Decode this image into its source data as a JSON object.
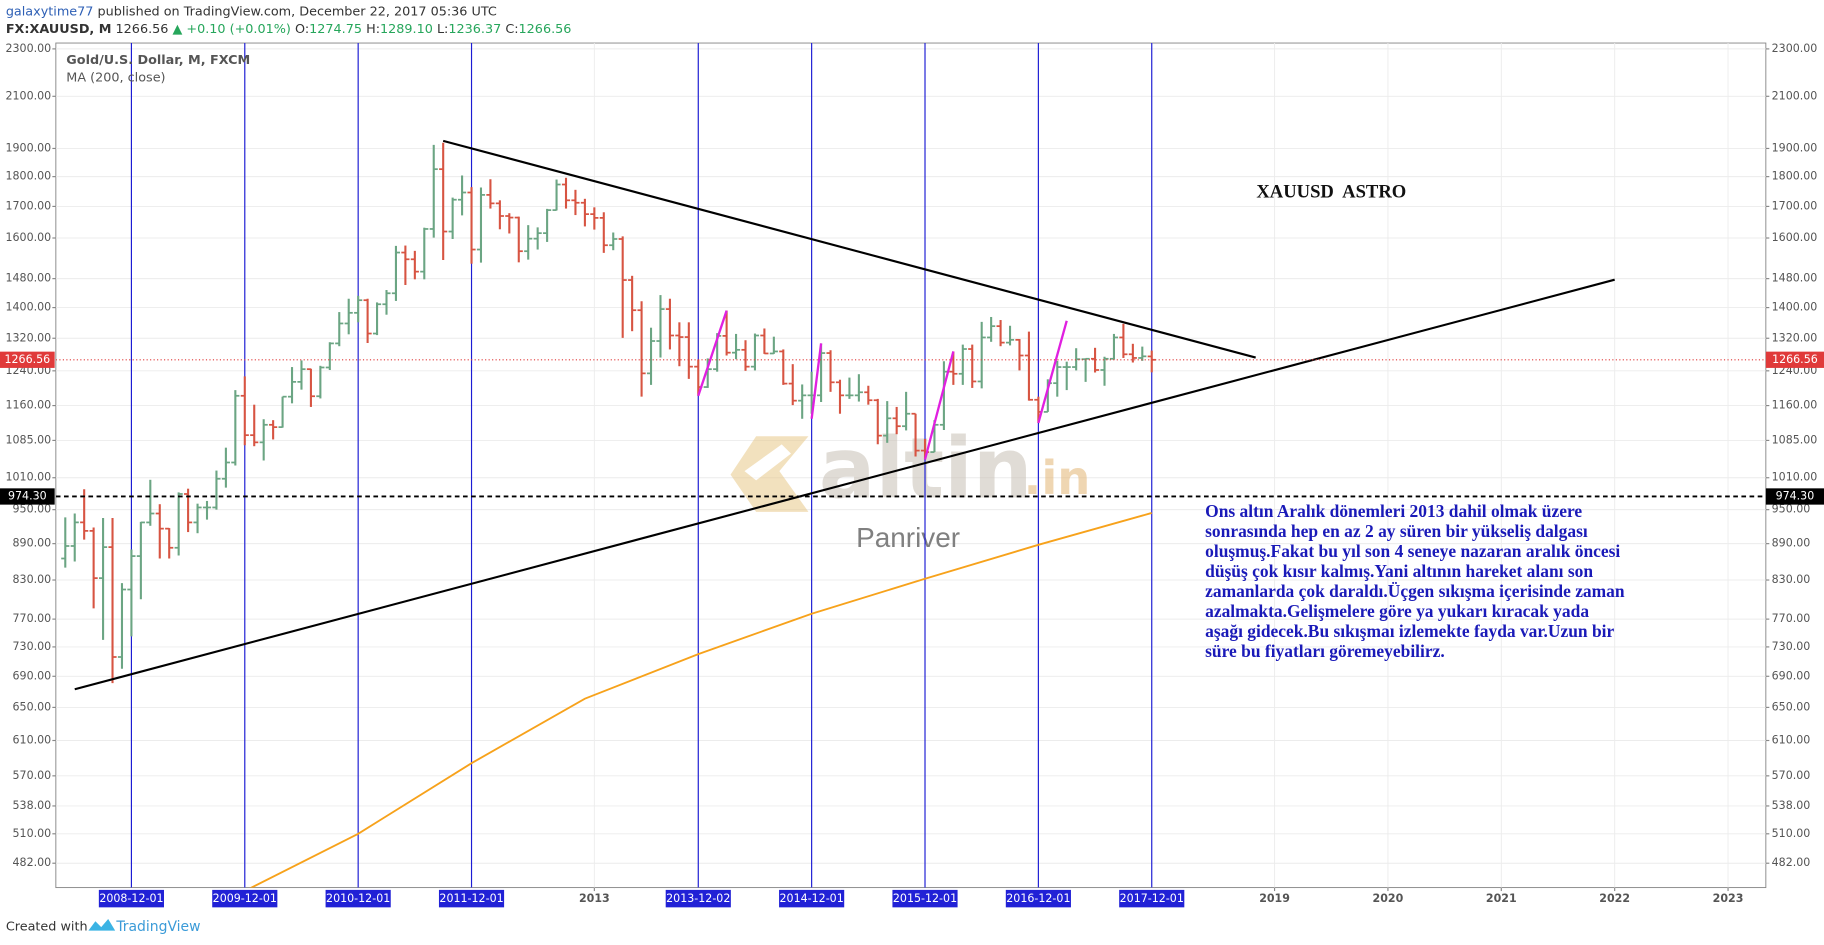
{
  "header": {
    "author": "galaxytime77",
    "published": "published on TradingView.com, December 22, 2017 05:36 UTC",
    "symbol": "FX:XAUUSD, M",
    "last": "1266.56",
    "change": "▲ +0.10 (+0.01%)",
    "ohlc": [
      {
        "label": "O:",
        "value": "1274.75"
      },
      {
        "label": "H:",
        "value": "1289.10"
      },
      {
        "label": "L:",
        "value": "1236.37"
      },
      {
        "label": "C:",
        "value": "1266.56"
      }
    ]
  },
  "footer": {
    "created": "Created with",
    "brand": "TradingView"
  },
  "chart_data": {
    "type": "ohlc",
    "log_scale": true,
    "grid": true,
    "up_color": "#6ba583",
    "down_color": "#d75442",
    "ylim": [
      460,
      2326
    ],
    "yticks": [
      {
        "value": 2300,
        "label": "2300.00"
      },
      {
        "value": 2100,
        "label": "2100.00"
      },
      {
        "value": 1900,
        "label": "1900.00"
      },
      {
        "value": 1800,
        "label": "1800.00"
      },
      {
        "value": 1700,
        "label": "1700.00"
      },
      {
        "value": 1600,
        "label": "1600.00"
      },
      {
        "value": 1480,
        "label": "1480.00"
      },
      {
        "value": 1400,
        "label": "1400.00"
      },
      {
        "value": 1320,
        "label": "1320.00"
      },
      {
        "value": 1240,
        "label": "1240.00"
      },
      {
        "value": 1160,
        "label": "1160.00"
      },
      {
        "value": 1085,
        "label": "1085.00"
      },
      {
        "value": 1010,
        "label": "1010.00"
      },
      {
        "value": 950,
        "label": "950.00"
      },
      {
        "value": 890,
        "label": "890.00"
      },
      {
        "value": 830,
        "label": "830.00"
      },
      {
        "value": 770,
        "label": "770.00"
      },
      {
        "value": 730,
        "label": "730.00"
      },
      {
        "value": 690,
        "label": "690.00"
      },
      {
        "value": 650,
        "label": "650.00"
      },
      {
        "value": 610,
        "label": "610.00"
      },
      {
        "value": 570,
        "label": "570.00"
      },
      {
        "value": 538,
        "label": "538.00"
      },
      {
        "value": 510,
        "label": "510.00"
      },
      {
        "value": 482,
        "label": "482.00"
      }
    ],
    "xlim": [
      "2008-04",
      "2023-05"
    ],
    "xticks": [
      "2008-12-01",
      "2009-12-01",
      "2010-12-01",
      "2011-12-01",
      "2013",
      "2013-12-02",
      "2014-12-01",
      "2015-12-01",
      "2016-12-01",
      "2017-12-01",
      "2019",
      "2020",
      "2021",
      "2022",
      "2023"
    ],
    "x": [
      "2008-05",
      "2008-06",
      "2008-07",
      "2008-08",
      "2008-09",
      "2008-10",
      "2008-11",
      "2008-12",
      "2009-01",
      "2009-02",
      "2009-03",
      "2009-04",
      "2009-05",
      "2009-06",
      "2009-07",
      "2009-08",
      "2009-09",
      "2009-10",
      "2009-11",
      "2009-12",
      "2010-01",
      "2010-02",
      "2010-03",
      "2010-04",
      "2010-05",
      "2010-06",
      "2010-07",
      "2010-08",
      "2010-09",
      "2010-10",
      "2010-11",
      "2010-12",
      "2011-01",
      "2011-02",
      "2011-03",
      "2011-04",
      "2011-05",
      "2011-06",
      "2011-07",
      "2011-08",
      "2011-09",
      "2011-10",
      "2011-11",
      "2011-12",
      "2012-01",
      "2012-02",
      "2012-03",
      "2012-04",
      "2012-05",
      "2012-06",
      "2012-07",
      "2012-08",
      "2012-09",
      "2012-10",
      "2012-11",
      "2012-12",
      "2013-01",
      "2013-02",
      "2013-03",
      "2013-04",
      "2013-05",
      "2013-06",
      "2013-07",
      "2013-08",
      "2013-09",
      "2013-10",
      "2013-11",
      "2013-12",
      "2014-01",
      "2014-02",
      "2014-03",
      "2014-04",
      "2014-05",
      "2014-06",
      "2014-07",
      "2014-08",
      "2014-09",
      "2014-10",
      "2014-11",
      "2014-12",
      "2015-01",
      "2015-02",
      "2015-03",
      "2015-04",
      "2015-05",
      "2015-06",
      "2015-07",
      "2015-08",
      "2015-09",
      "2015-10",
      "2015-11",
      "2015-12",
      "2016-01",
      "2016-02",
      "2016-03",
      "2016-04",
      "2016-05",
      "2016-06",
      "2016-07",
      "2016-08",
      "2016-09",
      "2016-10",
      "2016-11",
      "2016-12",
      "2017-01",
      "2017-02",
      "2017-03",
      "2017-04",
      "2017-05",
      "2017-06",
      "2017-07",
      "2017-08",
      "2017-09",
      "2017-10",
      "2017-11",
      "2017-12"
    ],
    "series": [
      {
        "name": "Gold/U.S. Dollar, M, FXCM",
        "open": [
          865,
          886,
          927,
          912,
          833,
          884,
          716,
          815,
          869,
          927,
          943,
          916,
          883,
          979,
          927,
          954,
          954,
          1008,
          1040,
          1182,
          1096,
          1081,
          1118,
          1113,
          1180,
          1214,
          1244,
          1181,
          1248,
          1307,
          1358,
          1386,
          1420,
          1332,
          1409,
          1439,
          1556,
          1536,
          1500,
          1628,
          1826,
          1620,
          1722,
          1746,
          1565,
          1738,
          1710,
          1669,
          1664,
          1560,
          1598,
          1615,
          1688,
          1773,
          1720,
          1712,
          1675,
          1663,
          1578,
          1597,
          1476,
          1393,
          1234,
          1313,
          1396,
          1327,
          1323,
          1250,
          1202,
          1244,
          1326,
          1284,
          1291,
          1250,
          1327,
          1282,
          1287,
          1210,
          1171,
          1183,
          1183,
          1283,
          1213,
          1183,
          1183,
          1190,
          1172,
          1095,
          1132,
          1115,
          1142,
          1064,
          1061,
          1118,
          1238,
          1233,
          1293,
          1215,
          1322,
          1351,
          1309,
          1316,
          1277,
          1173,
          1146,
          1211,
          1249,
          1249,
          1268,
          1269,
          1242,
          1269,
          1322,
          1280,
          1271,
          1274.75
        ],
        "high": [
          936,
          943,
          988,
          918,
          935,
          935,
          825,
          880,
          928,
          1006,
          960,
          917,
          982,
          989,
          961,
          966,
          1024,
          1070,
          1195,
          1227,
          1162,
          1130,
          1128,
          1180,
          1249,
          1265,
          1245,
          1252,
          1310,
          1388,
          1424,
          1432,
          1424,
          1414,
          1448,
          1576,
          1577,
          1561,
          1632,
          1913,
          1921,
          1729,
          1804,
          1764,
          1763,
          1791,
          1720,
          1678,
          1667,
          1640,
          1633,
          1692,
          1790,
          1796,
          1755,
          1725,
          1697,
          1681,
          1617,
          1605,
          1488,
          1417,
          1347,
          1434,
          1424,
          1361,
          1361,
          1267,
          1270,
          1333,
          1392,
          1331,
          1315,
          1332,
          1345,
          1324,
          1292,
          1256,
          1208,
          1238,
          1307,
          1290,
          1219,
          1224,
          1232,
          1205,
          1175,
          1170,
          1157,
          1191,
          1142,
          1088,
          1128,
          1263,
          1287,
          1304,
          1304,
          1362,
          1375,
          1367,
          1352,
          1318,
          1337,
          1180,
          1220,
          1264,
          1262,
          1295,
          1270,
          1296,
          1274,
          1331,
          1357,
          1306,
          1299,
          1289.1
        ],
        "low": [
          850,
          860,
          897,
          786,
          740,
          681,
          700,
          745,
          800,
          921,
          865,
          865,
          870,
          910,
          908,
          932,
          950,
          991,
          1034,
          1075,
          1073,
          1044,
          1087,
          1112,
          1165,
          1196,
          1157,
          1176,
          1242,
          1300,
          1330,
          1361,
          1308,
          1328,
          1381,
          1418,
          1462,
          1478,
          1478,
          1601,
          1534,
          1597,
          1671,
          1523,
          1526,
          1693,
          1627,
          1614,
          1527,
          1535,
          1565,
          1588,
          1687,
          1693,
          1672,
          1636,
          1626,
          1555,
          1563,
          1321,
          1338,
          1180,
          1207,
          1272,
          1292,
          1251,
          1221,
          1182,
          1200,
          1238,
          1277,
          1268,
          1240,
          1241,
          1281,
          1281,
          1207,
          1161,
          1131,
          1142,
          1168,
          1191,
          1142,
          1175,
          1169,
          1162,
          1077,
          1080,
          1098,
          1106,
          1052,
          1046,
          1061,
          1107,
          1207,
          1207,
          1200,
          1199,
          1311,
          1300,
          1302,
          1241,
          1171,
          1122,
          1146,
          1180,
          1195,
          1241,
          1214,
          1236,
          1205,
          1267,
          1271,
          1260,
          1264,
          1236.37
        ],
        "close": [
          886,
          927,
          912,
          833,
          884,
          716,
          815,
          869,
          927,
          943,
          916,
          883,
          979,
          927,
          954,
          954,
          1008,
          1040,
          1182,
          1096,
          1081,
          1118,
          1113,
          1180,
          1214,
          1244,
          1181,
          1248,
          1307,
          1358,
          1386,
          1420,
          1332,
          1409,
          1439,
          1556,
          1536,
          1500,
          1628,
          1826,
          1620,
          1722,
          1746,
          1565,
          1738,
          1710,
          1669,
          1664,
          1560,
          1598,
          1615,
          1688,
          1773,
          1720,
          1712,
          1675,
          1663,
          1578,
          1597,
          1476,
          1393,
          1234,
          1313,
          1396,
          1327,
          1323,
          1250,
          1202,
          1244,
          1326,
          1284,
          1291,
          1250,
          1327,
          1282,
          1287,
          1210,
          1171,
          1183,
          1183,
          1283,
          1213,
          1183,
          1183,
          1190,
          1172,
          1095,
          1132,
          1115,
          1142,
          1064,
          1061,
          1118,
          1238,
          1233,
          1293,
          1215,
          1322,
          1351,
          1309,
          1316,
          1277,
          1173,
          1146,
          1211,
          1249,
          1249,
          1268,
          1269,
          1242,
          1269,
          1322,
          1280,
          1271,
          1275,
          1266.56
        ]
      }
    ],
    "ma": {
      "name": "MA (200, close)",
      "color": "#f7a21b",
      "x": [
        "2009-12",
        "2010-12",
        "2011-12",
        "2012-12",
        "2013-12",
        "2014-12",
        "2015-12",
        "2016-12",
        "2017-12"
      ],
      "values": [
        457,
        510,
        584,
        661,
        720,
        778,
        832,
        888,
        944
      ]
    },
    "trendlines": [
      {
        "color": "#000000",
        "points": [
          [
            "2011-09",
            1928
          ],
          [
            "2018-11",
            1272
          ]
        ]
      },
      {
        "color": "#000000",
        "points": [
          [
            "2008-06",
            673
          ],
          [
            "2022-01",
            1477
          ]
        ]
      },
      {
        "color": "#e020e0",
        "points": [
          [
            "2013-12",
            1182
          ],
          [
            "2014-03",
            1392
          ]
        ]
      },
      {
        "color": "#e020e0",
        "points": [
          [
            "2014-12",
            1131
          ],
          [
            "2015-01",
            1307
          ]
        ]
      },
      {
        "color": "#e020e0",
        "points": [
          [
            "2015-12",
            1046
          ],
          [
            "2016-03",
            1287
          ]
        ]
      },
      {
        "color": "#e020e0",
        "points": [
          [
            "2016-12",
            1122
          ],
          [
            "2017-03",
            1365
          ]
        ]
      }
    ],
    "hline": {
      "value": 974.3,
      "label": "974.30",
      "color": "#000000"
    },
    "last_price": {
      "value": 1266.56,
      "label": "1266.56",
      "color": "#e03a3a"
    },
    "annotation_title": "XAUUSD  ASTRO",
    "note": [
      "Ons altın Aralık dönemleri 2013 dahil olmak üzere",
      "sonrasında hep en az 2 ay süren bir yükseliş dalgası",
      "oluşmuş.Fakat bu yıl son 4 seneye nazaran aralık öncesi",
      "düşüş çok kısır kalmış.Yani altının hareket alanı son",
      "zamanlarda çok daraldı.Üçgen sıkışma içerisinde zaman",
      "azalmakta.Gelişmelere göre ya yukarı kıracak yada",
      "aşağı gidecek.Bu sıkışmaı izlemekte fayda var.Uzun bir",
      "süre bu fiyatları göremeyebilirz."
    ],
    "watermark": {
      "brand": "altin",
      "suffix": ".in",
      "sub": "Panriver"
    }
  }
}
